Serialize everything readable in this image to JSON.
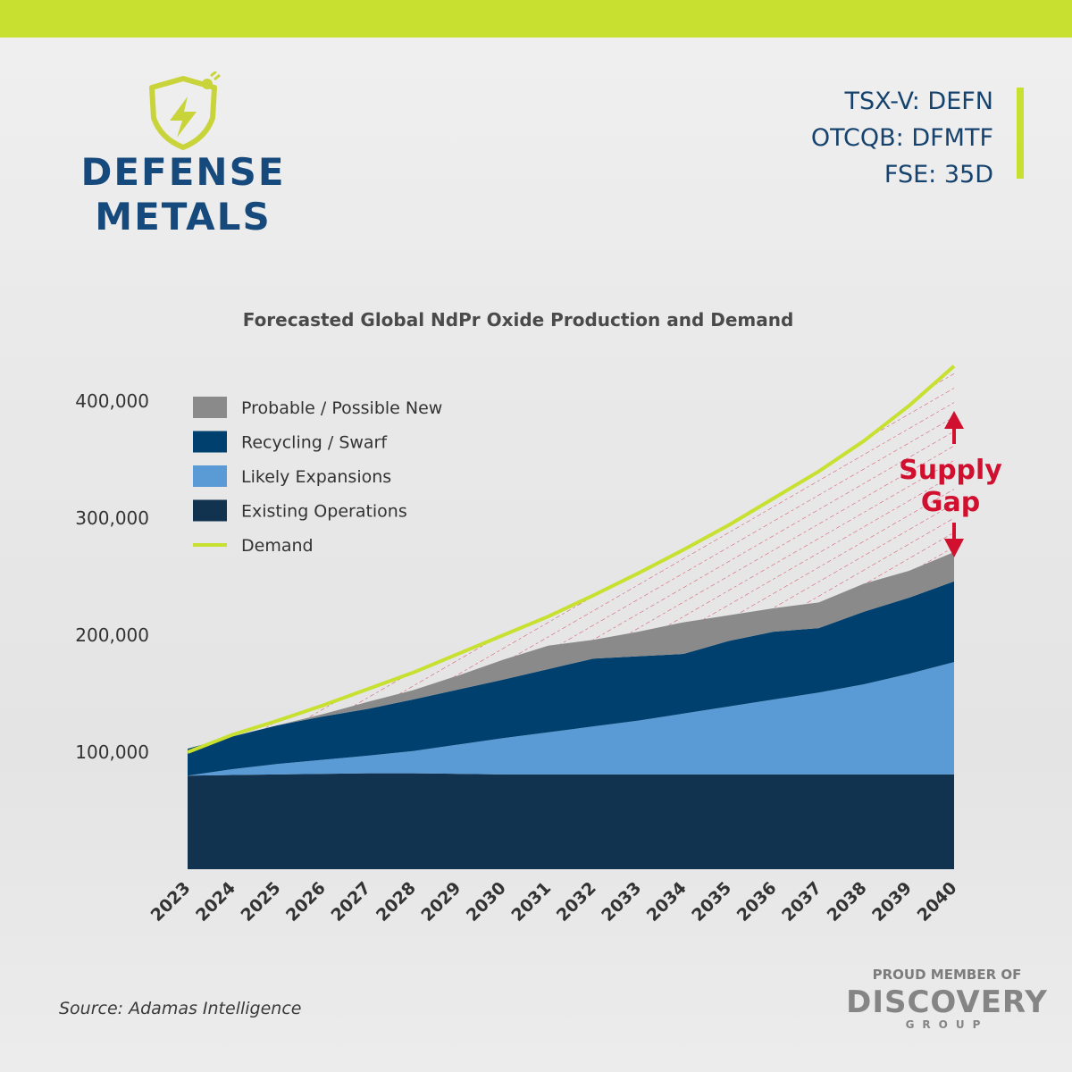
{
  "brand": {
    "logo_line1": "DEFENSE",
    "logo_line2": "METALS",
    "logo_icon": "shield-lightning-plug-icon",
    "accent_color": "#c8e02f",
    "brand_color": "#174a7c"
  },
  "tickers": [
    "TSX-V: DEFN",
    "OTCQB: DFMTF",
    "FSE: 35D"
  ],
  "chart_data": {
    "type": "area",
    "title": "Forecasted Global NdPr Oxide Production and Demand",
    "xlabel": "",
    "ylabel": "",
    "x": [
      "2023",
      "2024",
      "2025",
      "2026",
      "2027",
      "2028",
      "2029",
      "2030",
      "2031",
      "2032",
      "2033",
      "2034",
      "2035",
      "2036",
      "2037",
      "2038",
      "2039",
      "2040"
    ],
    "y_ticks": [
      100000,
      200000,
      300000,
      400000
    ],
    "y_tick_labels": [
      "100,000",
      "200,000",
      "300,000",
      "400,000"
    ],
    "ylim": [
      0,
      400000
    ],
    "stacked": true,
    "series": [
      {
        "name": "Existing Operations",
        "color": "#12334f",
        "values": [
          80000,
          80500,
          81000,
          81500,
          82000,
          82000,
          81500,
          81000,
          81000,
          81000,
          81000,
          81000,
          81000,
          81000,
          81000,
          81000,
          81000,
          81000
        ]
      },
      {
        "name": "Likely Expansions",
        "color": "#5b9bd5",
        "values": [
          0,
          5000,
          9000,
          12000,
          15000,
          19000,
          25000,
          31000,
          36000,
          41000,
          46000,
          52000,
          58000,
          64000,
          70000,
          77000,
          86000,
          96000
        ]
      },
      {
        "name": "Recycling / Swarf",
        "color": "#00406f",
        "values": [
          23000,
          28000,
          33000,
          37000,
          40000,
          44000,
          47000,
          50000,
          54000,
          58000,
          55000,
          51000,
          56000,
          58000,
          55000,
          62000,
          65000,
          69000
        ]
      },
      {
        "name": "Probable / Possible New",
        "color": "#8a8a8a",
        "values": [
          0,
          0,
          0,
          2000,
          6000,
          8000,
          12000,
          17000,
          20000,
          16000,
          21000,
          27000,
          22000,
          20000,
          22000,
          24000,
          23000,
          25000
        ]
      }
    ],
    "demand": {
      "name": "Demand",
      "color": "#c8e02f",
      "values": [
        100000,
        115000,
        127000,
        140000,
        154000,
        168000,
        184000,
        200000,
        216000,
        234000,
        253000,
        273000,
        294000,
        317000,
        340000,
        366000,
        396000,
        430000
      ]
    },
    "legend": {
      "placement": "top-left",
      "entries": [
        "Probable / Possible New",
        "Recycling / Swarf",
        "Likely Expansions",
        "Existing Operations",
        "Demand"
      ]
    },
    "annotation": {
      "line1": "Supply",
      "line2": "Gap",
      "color": "#d0102e"
    },
    "grid": false
  },
  "source": "Source: Adamas Intelligence",
  "member": {
    "label": "PROUD MEMBER OF",
    "brand": "DISCOVERY",
    "sub": "GROUP"
  }
}
